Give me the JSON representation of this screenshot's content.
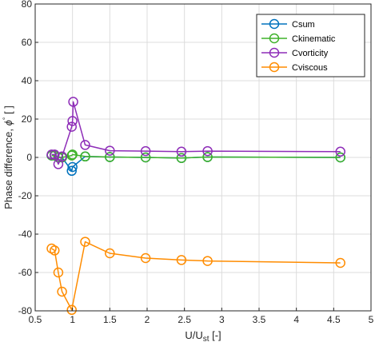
{
  "chart_data": {
    "type": "line",
    "xlabel": "U/U",
    "xlabel_sub": "st",
    "xlabel_unit": " [-]",
    "ylabel": "Phase difference, ",
    "ylabel_symbol": "ϕ",
    "ylabel_deg": "°",
    "ylabel_unit": " [ ]",
    "xlim": [
      0.5,
      5
    ],
    "ylim": [
      -80,
      80
    ],
    "xticks": [
      0.5,
      1,
      1.5,
      2,
      2.5,
      3,
      3.5,
      4,
      4.5,
      5
    ],
    "yticks": [
      -80,
      -60,
      -40,
      -20,
      0,
      20,
      40,
      60,
      80
    ],
    "xtick_labels": [
      "0.5",
      "1",
      "1.5",
      "2",
      "2.5",
      "3",
      "3.5",
      "4",
      "4.5",
      "5"
    ],
    "ytick_labels": [
      "-80",
      "-60",
      "-40",
      "-20",
      "0",
      "20",
      "40",
      "60",
      "80"
    ],
    "grid": true,
    "legend_position": "top-right",
    "series": [
      {
        "name": "Csum",
        "color": "#0072BD",
        "points": [
          [
            0.72,
            1
          ],
          [
            0.76,
            1
          ],
          [
            0.81,
            0
          ],
          [
            0.86,
            0
          ],
          [
            0.99,
            -7
          ],
          [
            1.0,
            -5
          ],
          [
            1.17,
            0.5
          ],
          [
            1.5,
            0.2
          ],
          [
            1.98,
            0
          ],
          [
            2.46,
            -0.3
          ],
          [
            2.81,
            0.2
          ],
          [
            4.59,
            0
          ]
        ]
      },
      {
        "name": "Ckinematic",
        "color": "#3FB22A",
        "points": [
          [
            0.72,
            1
          ],
          [
            0.76,
            1
          ],
          [
            0.81,
            0
          ],
          [
            0.86,
            0
          ],
          [
            0.99,
            1
          ],
          [
            1.0,
            1.5
          ],
          [
            1.17,
            0.5
          ],
          [
            1.5,
            0.2
          ],
          [
            1.98,
            0
          ],
          [
            2.46,
            -0.3
          ],
          [
            2.81,
            0.2
          ],
          [
            4.59,
            0
          ]
        ]
      },
      {
        "name": "Cvorticity",
        "color": "#8E2DB8",
        "points": [
          [
            0.72,
            1.5
          ],
          [
            0.76,
            1.5
          ],
          [
            0.81,
            -3.5
          ],
          [
            0.86,
            0.5
          ],
          [
            0.99,
            16
          ],
          [
            1.0,
            19
          ],
          [
            1.01,
            29
          ],
          [
            1.17,
            6.5
          ],
          [
            1.5,
            3.5
          ],
          [
            1.98,
            3.3
          ],
          [
            2.46,
            3
          ],
          [
            2.81,
            3.3
          ],
          [
            4.59,
            3
          ]
        ]
      },
      {
        "name": "Cviscous",
        "color": "#FF8C00",
        "points": [
          [
            0.72,
            -47.5
          ],
          [
            0.76,
            -48.5
          ],
          [
            0.81,
            -60
          ],
          [
            0.86,
            -70
          ],
          [
            0.99,
            -79.5
          ],
          [
            1.17,
            -44
          ],
          [
            1.5,
            -50
          ],
          [
            1.98,
            -52.5
          ],
          [
            2.46,
            -53.5
          ],
          [
            2.81,
            -54
          ],
          [
            4.59,
            -55
          ]
        ]
      }
    ]
  }
}
